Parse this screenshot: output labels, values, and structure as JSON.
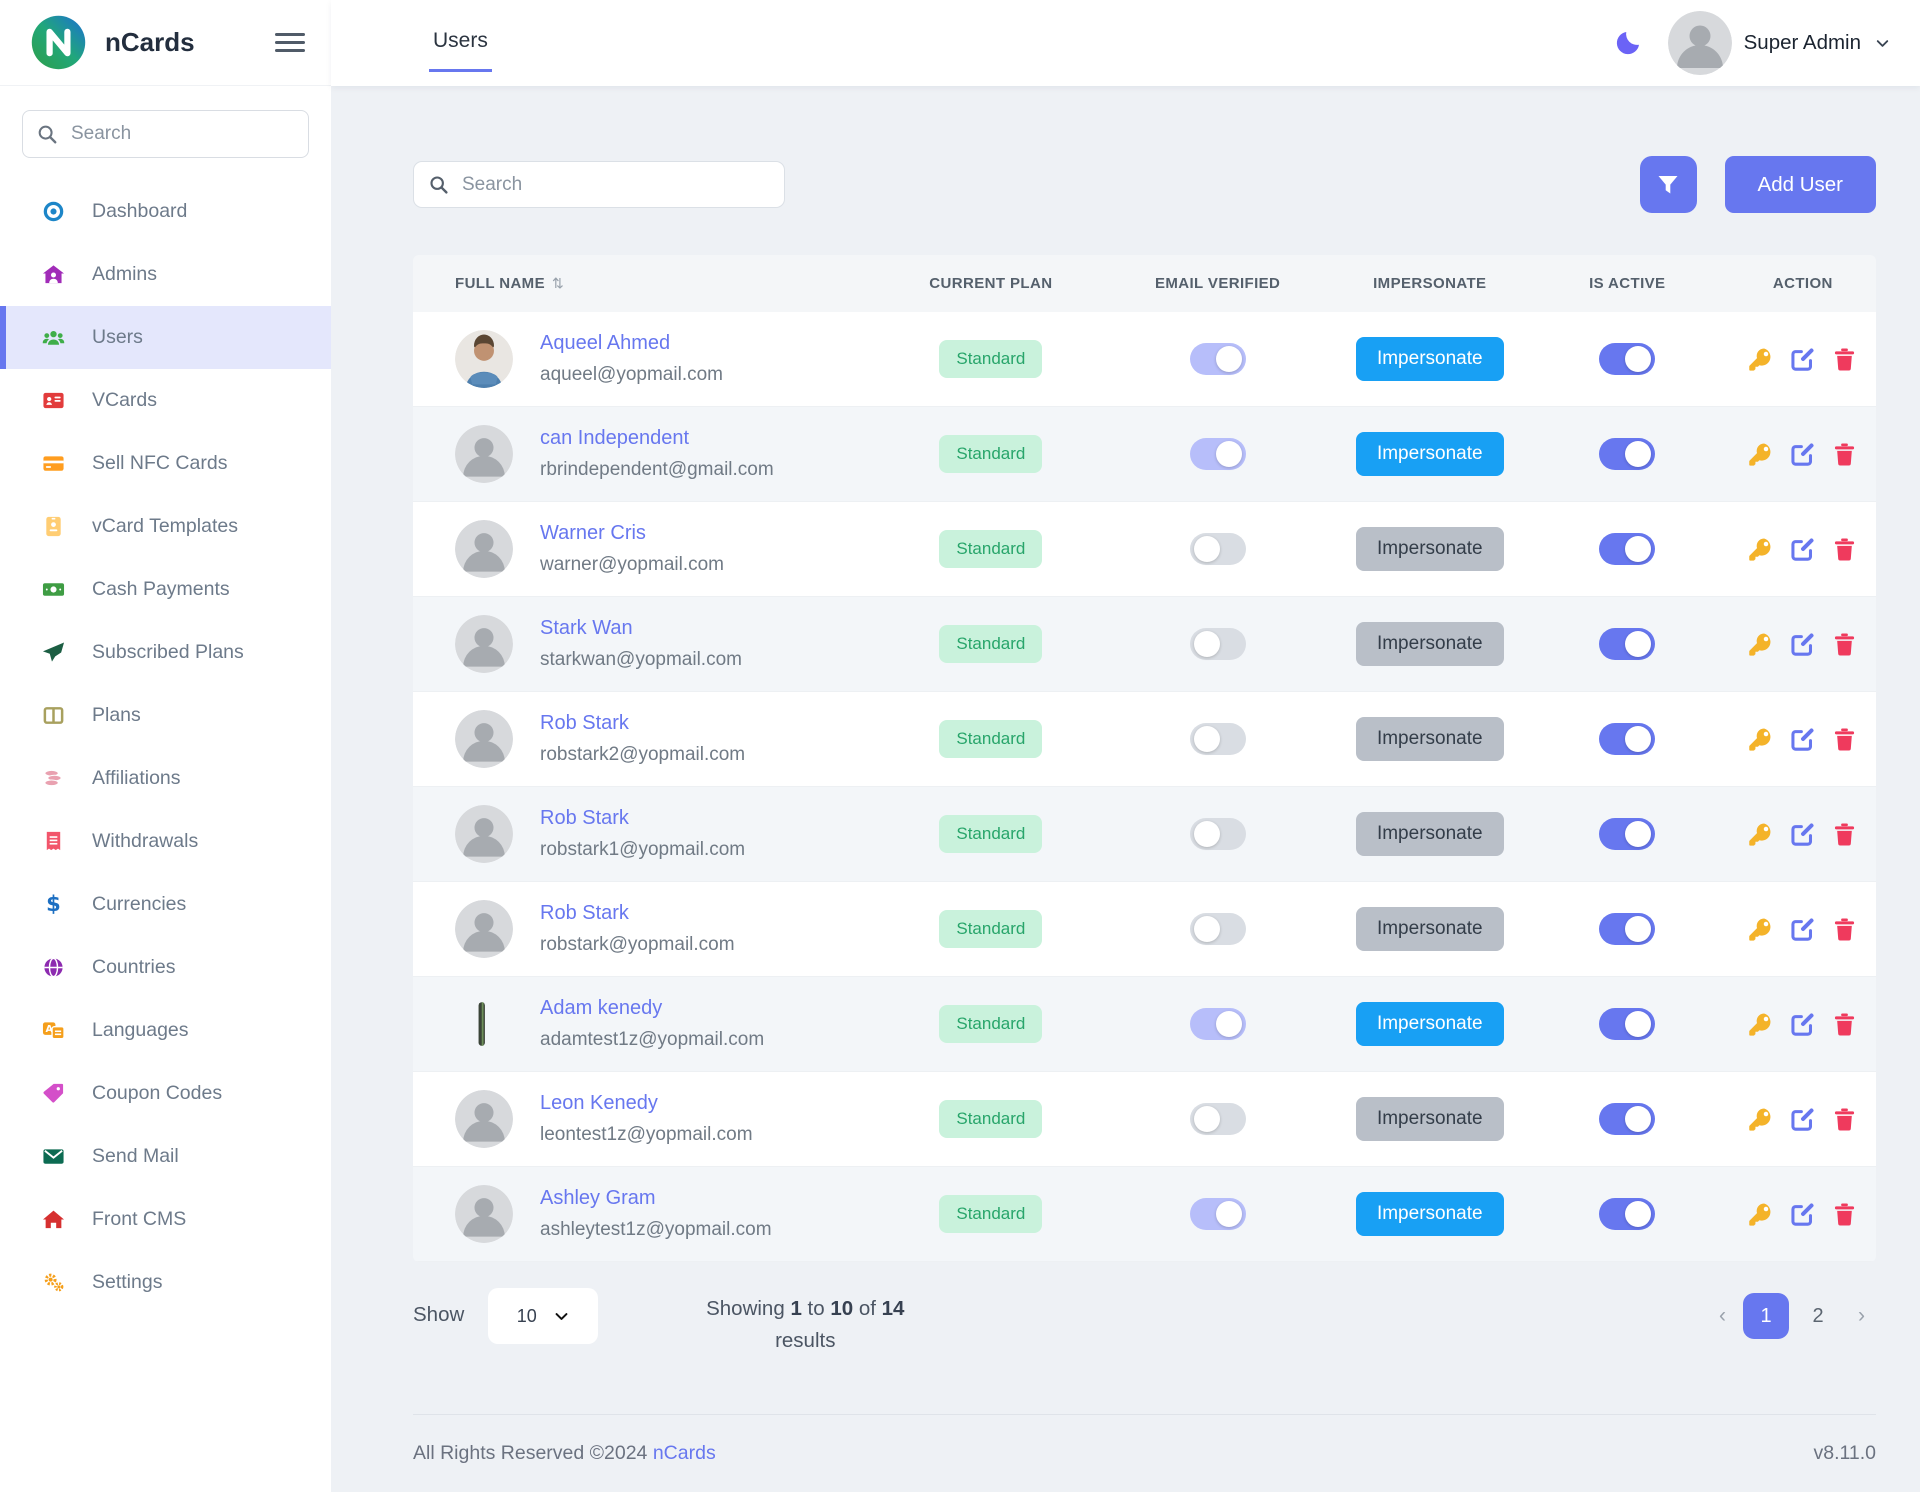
{
  "brand": {
    "name": "nCards"
  },
  "header": {
    "tab": "Users",
    "user_name": "Super Admin"
  },
  "sidebar": {
    "search_placeholder": "Search",
    "items": [
      {
        "label": "Dashboard",
        "icon": "dot-circle-icon",
        "color": "#1d86c8",
        "active": false
      },
      {
        "label": "Admins",
        "icon": "house-user-icon",
        "color": "#a12cb8",
        "active": false
      },
      {
        "label": "Users",
        "icon": "users-icon",
        "color": "#3fae49",
        "active": true
      },
      {
        "label": "VCards",
        "icon": "id-card-icon",
        "color": "#e23c3c",
        "active": false
      },
      {
        "label": "Sell NFC Cards",
        "icon": "credit-card-icon",
        "color": "#ff9d1f",
        "active": false
      },
      {
        "label": "vCard Templates",
        "icon": "id-badge-icon",
        "color": "#ffcd73",
        "active": false
      },
      {
        "label": "Cash Payments",
        "icon": "money-bill-icon",
        "color": "#3f9d44",
        "active": false
      },
      {
        "label": "Subscribed Plans",
        "icon": "paper-plane-icon",
        "color": "#1c5e43",
        "active": false
      },
      {
        "label": "Plans",
        "icon": "table-columns-icon",
        "color": "#a8a05e",
        "active": false
      },
      {
        "label": "Affiliations",
        "icon": "coins-icon",
        "color": "#e9a1b0",
        "active": false
      },
      {
        "label": "Withdrawals",
        "icon": "receipt-icon",
        "color": "#f2556b",
        "active": false
      },
      {
        "label": "Currencies",
        "icon": "dollar-icon",
        "color": "#1d6fc2",
        "active": false
      },
      {
        "label": "Countries",
        "icon": "globe-icon",
        "color": "#8d2bb0",
        "active": false
      },
      {
        "label": "Languages",
        "icon": "language-icon",
        "color": "#f59f1b",
        "active": false
      },
      {
        "label": "Coupon Codes",
        "icon": "tags-icon",
        "color": "#d44fc9",
        "active": false
      },
      {
        "label": "Send Mail",
        "icon": "envelope-icon",
        "color": "#0c6b52",
        "active": false
      },
      {
        "label": "Front CMS",
        "icon": "home-icon",
        "color": "#d63030",
        "active": false
      },
      {
        "label": "Settings",
        "icon": "gears-icon",
        "color": "#f59f1b",
        "active": false
      }
    ]
  },
  "toolbar": {
    "search_placeholder": "Search",
    "add_user_label": "Add User"
  },
  "table": {
    "columns": [
      "FULL NAME",
      "CURRENT PLAN",
      "EMAIL VERIFIED",
      "IMPERSONATE",
      "IS ACTIVE",
      "ACTION"
    ],
    "impersonate_label": "Impersonate",
    "rows": [
      {
        "name": "Aqueel Ahmed",
        "email": "aqueel@yopmail.com",
        "plan": "Standard",
        "email_verified": true,
        "impersonate_enabled": true,
        "is_active": true,
        "avatar": "photo"
      },
      {
        "name": "can Independent",
        "email": "rbrindependent@gmail.com",
        "plan": "Standard",
        "email_verified": true,
        "impersonate_enabled": true,
        "is_active": true,
        "avatar": "placeholder"
      },
      {
        "name": "Warner Cris",
        "email": "warner@yopmail.com",
        "plan": "Standard",
        "email_verified": false,
        "impersonate_enabled": false,
        "is_active": true,
        "avatar": "placeholder"
      },
      {
        "name": "Stark Wan",
        "email": "starkwan@yopmail.com",
        "plan": "Standard",
        "email_verified": false,
        "impersonate_enabled": false,
        "is_active": true,
        "avatar": "placeholder"
      },
      {
        "name": "Rob Stark",
        "email": "robstark2@yopmail.com",
        "plan": "Standard",
        "email_verified": false,
        "impersonate_enabled": false,
        "is_active": true,
        "avatar": "placeholder"
      },
      {
        "name": "Rob Stark",
        "email": "robstark1@yopmail.com",
        "plan": "Standard",
        "email_verified": false,
        "impersonate_enabled": false,
        "is_active": true,
        "avatar": "placeholder"
      },
      {
        "name": "Rob Stark",
        "email": "robstark@yopmail.com",
        "plan": "Standard",
        "email_verified": false,
        "impersonate_enabled": false,
        "is_active": true,
        "avatar": "placeholder"
      },
      {
        "name": "Adam kenedy",
        "email": "adamtest1z@yopmail.com",
        "plan": "Standard",
        "email_verified": true,
        "impersonate_enabled": true,
        "is_active": true,
        "avatar": "sliver"
      },
      {
        "name": "Leon Kenedy",
        "email": "leontest1z@yopmail.com",
        "plan": "Standard",
        "email_verified": false,
        "impersonate_enabled": false,
        "is_active": true,
        "avatar": "placeholder"
      },
      {
        "name": "Ashley Gram",
        "email": "ashleytest1z@yopmail.com",
        "plan": "Standard",
        "email_verified": true,
        "impersonate_enabled": true,
        "is_active": true,
        "avatar": "placeholder"
      }
    ]
  },
  "pagination": {
    "show_label": "Show",
    "page_size": "10",
    "summary": {
      "t1": "Showing ",
      "n1": "1",
      "t2": " to ",
      "n2": "10",
      "t3": " of ",
      "n3": "14",
      "t4": " results"
    },
    "prev": "‹",
    "next": "›",
    "pages": [
      "1",
      "2"
    ],
    "active_page": "1"
  },
  "footer": {
    "rights": "All Rights Reserved ©2024 ",
    "brand_link": "nCards",
    "version": "v8.11.0"
  },
  "colors": {
    "accent": "#6777ef",
    "active_menu_bg": "#e4e7fc",
    "impersonate_active": "#18a0f4",
    "impersonate_disabled": "#b9bfc8",
    "badge_bg": "#c9f2dc",
    "badge_text": "#27a56a",
    "toggle_verified_on": "#b7befa",
    "toggle_off": "#d9dde3",
    "toggle_active_on": "#6777ef",
    "key_icon": "#f4b32a",
    "edit_icon": "#6777ef",
    "delete_icon": "#ef3a5d",
    "content_bg": "#eef1f5"
  }
}
